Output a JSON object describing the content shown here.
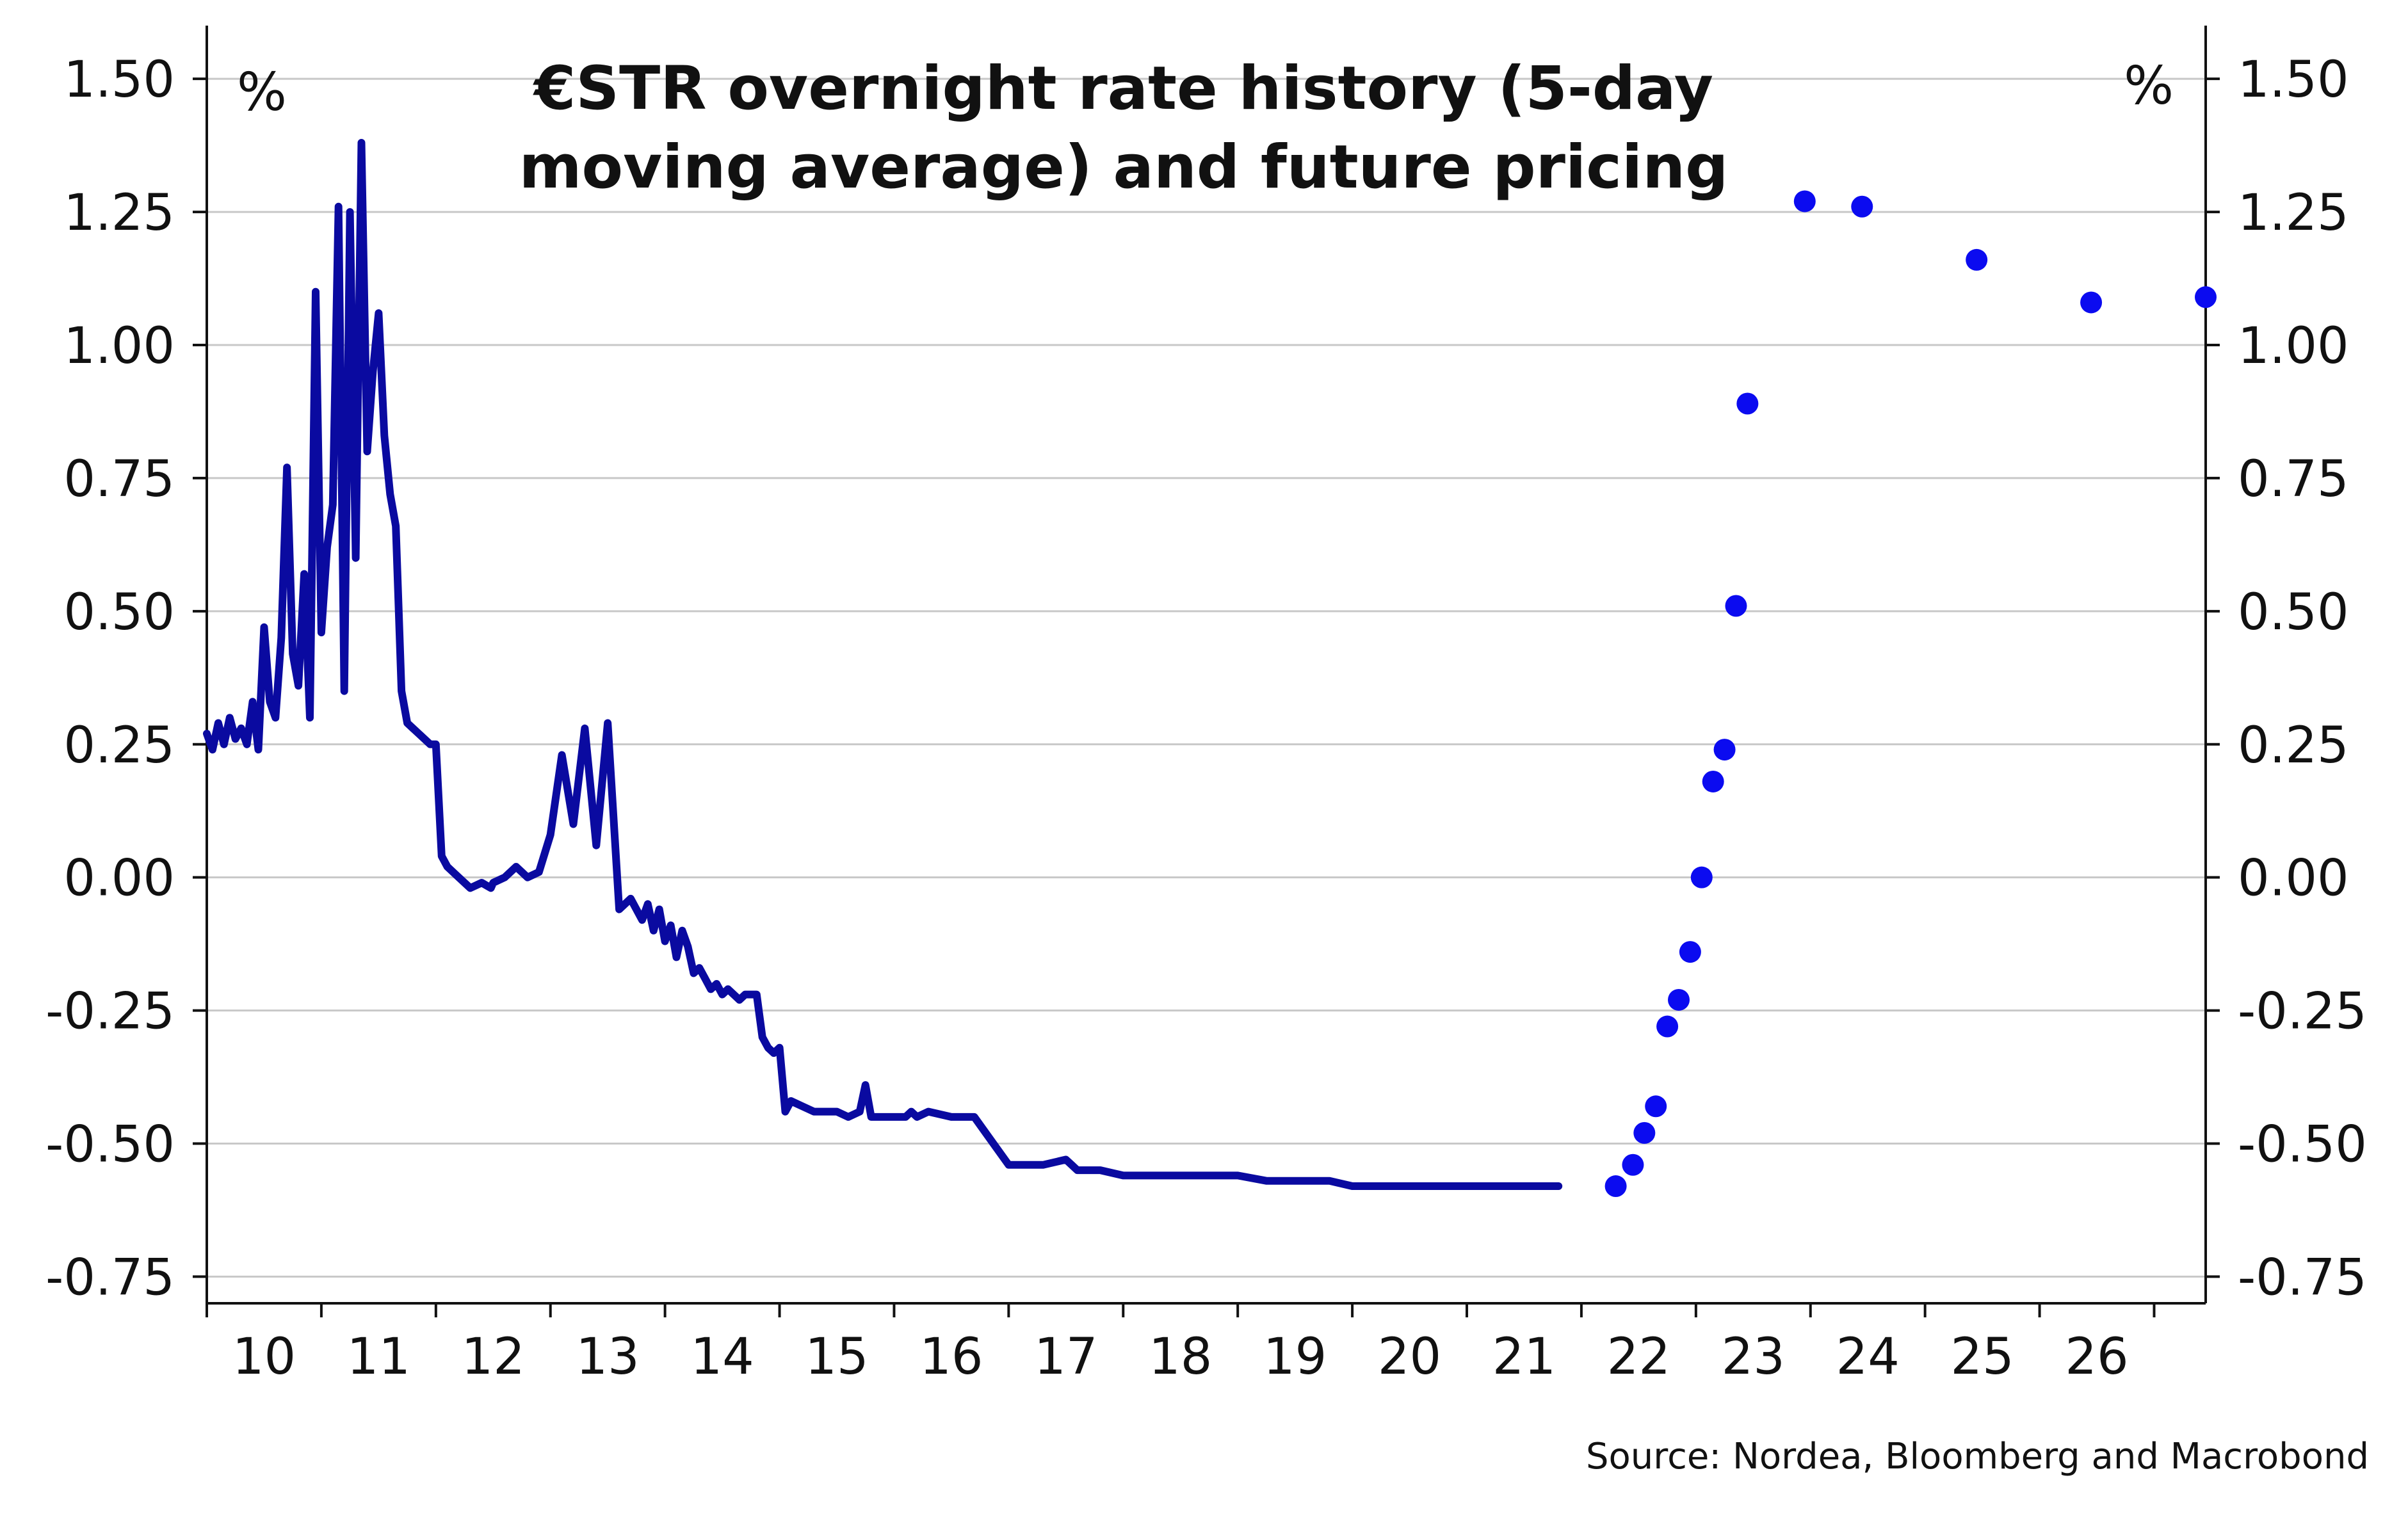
{
  "chart_data": {
    "type": "line",
    "title_lines": [
      "€STR overnight rate history (5-day",
      "moving average) and future pricing"
    ],
    "source": "Source: Nordea, Bloomberg and Macrobond",
    "y_unit_left": "%",
    "y_unit_right": "%",
    "ylim": [
      -0.8,
      1.6
    ],
    "yticks": [
      {
        "value": 1.5,
        "label": "1.50"
      },
      {
        "value": 1.25,
        "label": "1.25"
      },
      {
        "value": 1.0,
        "label": "1.00"
      },
      {
        "value": 0.75,
        "label": "0.75"
      },
      {
        "value": 0.5,
        "label": "0.50"
      },
      {
        "value": 0.25,
        "label": "0.25"
      },
      {
        "value": 0.0,
        "label": "0.00"
      },
      {
        "value": -0.25,
        "label": "-0.25"
      },
      {
        "value": -0.5,
        "label": "-0.50"
      },
      {
        "value": -0.75,
        "label": "-0.75"
      }
    ],
    "xlim": [
      2010.0,
      2027.45
    ],
    "xticks": [
      {
        "value": 2010.5,
        "label": "10"
      },
      {
        "value": 2011.5,
        "label": "11"
      },
      {
        "value": 2012.5,
        "label": "12"
      },
      {
        "value": 2013.5,
        "label": "13"
      },
      {
        "value": 2014.5,
        "label": "14"
      },
      {
        "value": 2015.5,
        "label": "15"
      },
      {
        "value": 2016.5,
        "label": "16"
      },
      {
        "value": 2017.5,
        "label": "17"
      },
      {
        "value": 2018.5,
        "label": "18"
      },
      {
        "value": 2019.5,
        "label": "19"
      },
      {
        "value": 2020.5,
        "label": "20"
      },
      {
        "value": 2021.5,
        "label": "21"
      },
      {
        "value": 2022.5,
        "label": "22"
      },
      {
        "value": 2023.5,
        "label": "23"
      },
      {
        "value": 2024.5,
        "label": "24"
      },
      {
        "value": 2025.5,
        "label": "25"
      },
      {
        "value": 2026.5,
        "label": "26"
      }
    ],
    "grid": true,
    "colors": {
      "history": "#0a0aa0",
      "pricing": "#0b0bf0",
      "grid": "#c8c8c8",
      "axis": "#111111"
    },
    "series": [
      {
        "type": "line",
        "x": [
          2010.0,
          2010.05,
          2010.1,
          2010.15,
          2010.2,
          2010.25,
          2010.3,
          2010.35,
          2010.4,
          2010.45,
          2010.5,
          2010.55,
          2010.6,
          2010.65,
          2010.7,
          2010.75,
          2010.8,
          2010.85,
          2010.9,
          2010.95,
          2011.0,
          2011.05,
          2011.1,
          2011.15,
          2011.2,
          2011.25,
          2011.3,
          2011.35,
          2011.4,
          2011.45,
          2011.5,
          2011.55,
          2011.6,
          2011.65,
          2011.7,
          2011.75,
          2011.8,
          2011.85,
          2011.9,
          2011.95,
          2012.0,
          2012.05,
          2012.1,
          2012.2,
          2012.3,
          2012.4,
          2012.48,
          2012.5,
          2012.6,
          2012.7,
          2012.8,
          2012.9,
          2013.0,
          2013.1,
          2013.2,
          2013.3,
          2013.4,
          2013.5,
          2013.6,
          2013.7,
          2013.8,
          2013.85,
          2013.9,
          2013.95,
          2014.0,
          2014.05,
          2014.1,
          2014.15,
          2014.2,
          2014.25,
          2014.3,
          2014.35,
          2014.4,
          2014.45,
          2014.5,
          2014.55,
          2014.6,
          2014.65,
          2014.7,
          2014.75,
          2014.8,
          2014.85,
          2014.9,
          2014.95,
          2015.0,
          2015.05,
          2015.1,
          2015.2,
          2015.3,
          2015.4,
          2015.5,
          2015.6,
          2015.7,
          2015.75,
          2015.8,
          2015.9,
          2016.0,
          2016.1,
          2016.15,
          2016.2,
          2016.3,
          2016.5,
          2016.7,
          2017.0,
          2017.3,
          2017.5,
          2017.55,
          2017.6,
          2017.8,
          2018.0,
          2018.5,
          2019.0,
          2019.25,
          2019.3,
          2019.35,
          2019.4,
          2019.6,
          2019.8,
          2020.0,
          2020.3,
          2020.6,
          2021.0,
          2021.4,
          2021.7,
          2021.8
        ],
        "values": [
          0.27,
          0.24,
          0.29,
          0.25,
          0.3,
          0.26,
          0.28,
          0.25,
          0.33,
          0.24,
          0.47,
          0.33,
          0.3,
          0.45,
          0.77,
          0.42,
          0.36,
          0.57,
          0.3,
          1.1,
          0.46,
          0.62,
          0.7,
          1.26,
          0.35,
          1.25,
          0.6,
          1.38,
          0.8,
          0.95,
          1.06,
          0.83,
          0.72,
          0.66,
          0.35,
          0.29,
          0.28,
          0.27,
          0.26,
          0.25,
          0.25,
          0.04,
          0.02,
          0.0,
          -0.02,
          -0.01,
          -0.02,
          -0.01,
          0.0,
          0.02,
          0.0,
          0.01,
          0.08,
          0.23,
          0.1,
          0.28,
          0.06,
          0.29,
          -0.06,
          -0.04,
          -0.08,
          -0.05,
          -0.1,
          -0.06,
          -0.12,
          -0.09,
          -0.15,
          -0.1,
          -0.13,
          -0.18,
          -0.17,
          -0.19,
          -0.21,
          -0.2,
          -0.22,
          -0.21,
          -0.22,
          -0.23,
          -0.22,
          -0.22,
          -0.22,
          -0.3,
          -0.32,
          -0.33,
          -0.32,
          -0.44,
          -0.42,
          -0.43,
          -0.44,
          -0.44,
          -0.44,
          -0.45,
          -0.44,
          -0.39,
          -0.45,
          -0.45,
          -0.45,
          -0.45,
          -0.44,
          -0.45,
          -0.44,
          -0.45,
          -0.45,
          -0.54,
          -0.54,
          -0.53,
          -0.54,
          -0.55,
          -0.55,
          -0.56,
          -0.56,
          -0.56,
          -0.57,
          -0.57,
          -0.57,
          -0.57,
          -0.57,
          -0.57,
          -0.58,
          -0.58,
          -0.58,
          -0.58,
          -0.58,
          -0.58,
          -0.58
        ]
      },
      {
        "type": "scatter",
        "x": [
          2022.3,
          2022.45,
          2022.55,
          2022.65,
          2022.75,
          2022.85,
          2022.95,
          2023.05,
          2023.15,
          2023.25,
          2023.35,
          2023.45,
          2023.95,
          2024.45,
          2025.45,
          2026.45,
          2027.45
        ],
        "values": [
          -0.58,
          -0.54,
          -0.48,
          -0.43,
          -0.28,
          -0.23,
          -0.14,
          0.0,
          0.18,
          0.24,
          0.51,
          0.89,
          1.27,
          1.26,
          1.16,
          1.08,
          1.09
        ]
      }
    ]
  }
}
